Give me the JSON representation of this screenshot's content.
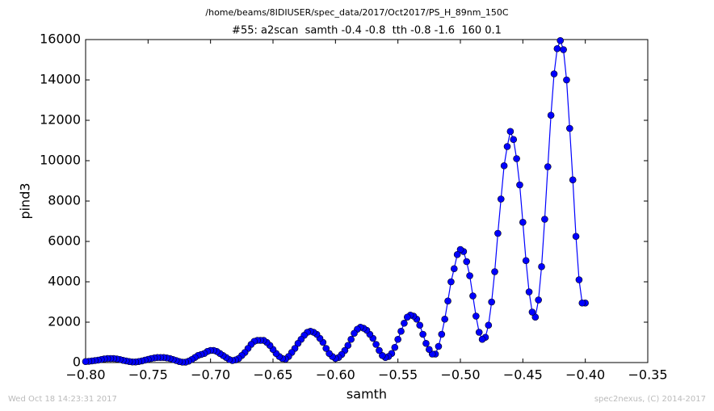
{
  "chart_data": {
    "type": "line",
    "suptitle": "/home/beams/8IDIUSER/spec_data/2017/Oct2017/PS_H_89nm_150C",
    "title": "#55: a2scan  samth -0.4 -0.8  tth -0.8 -1.6  160 0.1",
    "x_label": "samth",
    "y_label": "pind3",
    "footer_left": "Wed Oct 18 14:23:31 2017",
    "footer_right": "spec2nexus, (C) 2014-2017",
    "xlim": [
      -0.8,
      -0.35
    ],
    "ylim": [
      0,
      16000
    ],
    "xticks": [
      {
        "value": -0.8,
        "label": "−0.80"
      },
      {
        "value": -0.75,
        "label": "−0.75"
      },
      {
        "value": -0.7,
        "label": "−0.70"
      },
      {
        "value": -0.65,
        "label": "−0.65"
      },
      {
        "value": -0.6,
        "label": "−0.60"
      },
      {
        "value": -0.55,
        "label": "−0.55"
      },
      {
        "value": -0.5,
        "label": "−0.50"
      },
      {
        "value": -0.45,
        "label": "−0.45"
      },
      {
        "value": -0.4,
        "label": "−0.40"
      },
      {
        "value": -0.35,
        "label": "−0.35"
      }
    ],
    "yticks": [
      0,
      2000,
      4000,
      6000,
      8000,
      10000,
      12000,
      14000,
      16000
    ],
    "grid": false,
    "x": [
      -0.4,
      -0.4025,
      -0.405,
      -0.4075,
      -0.41,
      -0.4125,
      -0.415,
      -0.4175,
      -0.42,
      -0.4225,
      -0.425,
      -0.4275,
      -0.43,
      -0.4325,
      -0.435,
      -0.4375,
      -0.44,
      -0.4425,
      -0.445,
      -0.4475,
      -0.45,
      -0.4525,
      -0.455,
      -0.4575,
      -0.46,
      -0.4625,
      -0.465,
      -0.4675,
      -0.47,
      -0.4725,
      -0.475,
      -0.4775,
      -0.48,
      -0.4825,
      -0.485,
      -0.4875,
      -0.49,
      -0.4925,
      -0.495,
      -0.4975,
      -0.5,
      -0.5025,
      -0.505,
      -0.5075,
      -0.51,
      -0.5125,
      -0.515,
      -0.5175,
      -0.52,
      -0.5225,
      -0.525,
      -0.5275,
      -0.53,
      -0.5325,
      -0.535,
      -0.5375,
      -0.54,
      -0.5425,
      -0.545,
      -0.5475,
      -0.55,
      -0.5525,
      -0.555,
      -0.5575,
      -0.56,
      -0.5625,
      -0.565,
      -0.5675,
      -0.57,
      -0.5725,
      -0.575,
      -0.5775,
      -0.58,
      -0.5825,
      -0.585,
      -0.5875,
      -0.59,
      -0.5925,
      -0.595,
      -0.5975,
      -0.6,
      -0.6025,
      -0.605,
      -0.6075,
      -0.61,
      -0.6125,
      -0.615,
      -0.6175,
      -0.62,
      -0.6225,
      -0.625,
      -0.6275,
      -0.63,
      -0.6325,
      -0.635,
      -0.6375,
      -0.64,
      -0.6425,
      -0.645,
      -0.6475,
      -0.65,
      -0.6525,
      -0.655,
      -0.6575,
      -0.66,
      -0.6625,
      -0.665,
      -0.6675,
      -0.67,
      -0.6725,
      -0.675,
      -0.6775,
      -0.68,
      -0.6825,
      -0.685,
      -0.6875,
      -0.69,
      -0.6925,
      -0.695,
      -0.6975,
      -0.7,
      -0.7025,
      -0.705,
      -0.7075,
      -0.71,
      -0.7125,
      -0.715,
      -0.7175,
      -0.72,
      -0.7225,
      -0.725,
      -0.7275,
      -0.73,
      -0.7325,
      -0.735,
      -0.7375,
      -0.74,
      -0.7425,
      -0.745,
      -0.7475,
      -0.75,
      -0.7525,
      -0.755,
      -0.7575,
      -0.76,
      -0.7625,
      -0.765,
      -0.7675,
      -0.77,
      -0.7725,
      -0.775,
      -0.7775,
      -0.78,
      -0.7825,
      -0.785,
      -0.7875,
      -0.79,
      -0.7925,
      -0.795,
      -0.7975,
      -0.8
    ],
    "series": [
      {
        "color": "#0000ff",
        "marker_color": "#0000ff",
        "values": [
          2950,
          2950,
          4100,
          6250,
          9050,
          11600,
          14000,
          15500,
          15950,
          15550,
          14300,
          12250,
          9700,
          7100,
          4750,
          3100,
          2250,
          2500,
          3500,
          5050,
          6950,
          8800,
          10100,
          11050,
          11450,
          10700,
          9750,
          8100,
          6400,
          4500,
          3000,
          1850,
          1250,
          1150,
          1500,
          2300,
          3300,
          4300,
          5000,
          5500,
          5600,
          5350,
          4650,
          4000,
          3050,
          2150,
          1400,
          800,
          420,
          420,
          650,
          950,
          1400,
          1850,
          2150,
          2300,
          2350,
          2250,
          1950,
          1550,
          1150,
          750,
          450,
          300,
          250,
          350,
          600,
          900,
          1200,
          1400,
          1600,
          1700,
          1750,
          1650,
          1450,
          1150,
          850,
          600,
          400,
          250,
          200,
          300,
          450,
          700,
          1000,
          1200,
          1400,
          1500,
          1550,
          1500,
          1350,
          1150,
          950,
          700,
          500,
          300,
          170,
          200,
          300,
          450,
          650,
          850,
          1000,
          1100,
          1100,
          1100,
          1050,
          900,
          700,
          500,
          350,
          200,
          130,
          100,
          150,
          250,
          350,
          450,
          550,
          600,
          600,
          550,
          450,
          400,
          350,
          250,
          150,
          70,
          20,
          20,
          50,
          100,
          150,
          200,
          230,
          250,
          250,
          250,
          230,
          200,
          160,
          120,
          80,
          50,
          30,
          30,
          50,
          80,
          110,
          150,
          180,
          200,
          200,
          200,
          180,
          150,
          120,
          100,
          80,
          60,
          50
        ]
      }
    ]
  }
}
